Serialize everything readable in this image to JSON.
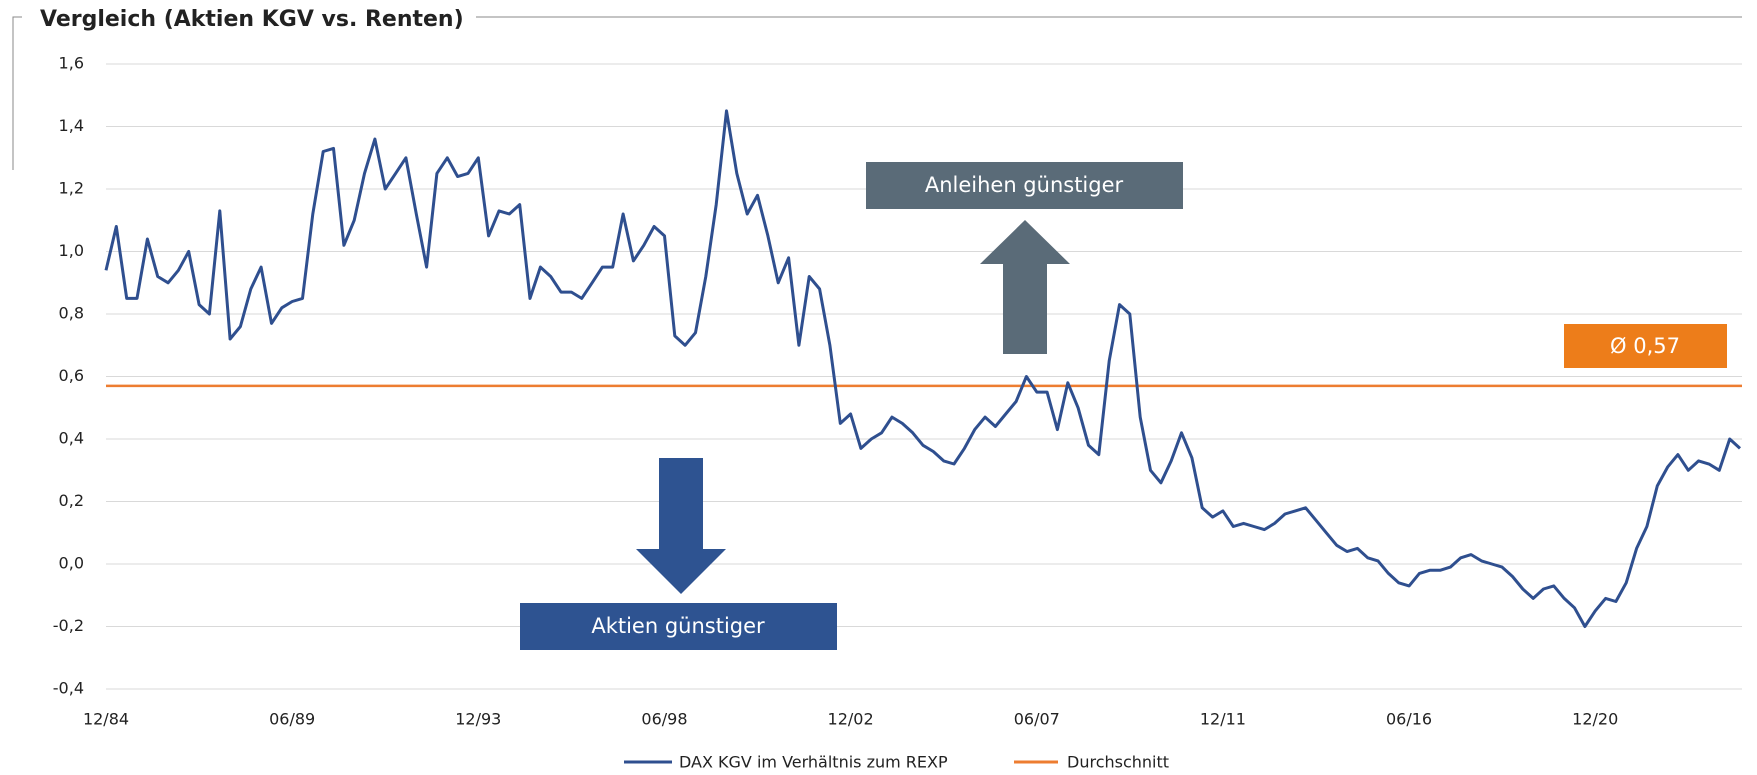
{
  "chart_data": {
    "type": "line",
    "title": "Vergleich (Aktien KGV vs. Renten)",
    "categories": [
      "12/84",
      null,
      null,
      null,
      null,
      null,
      null,
      null,
      null,
      null,
      null,
      null,
      null,
      null,
      null,
      null,
      null,
      null,
      "06/89",
      null,
      null,
      null,
      null,
      null,
      null,
      null,
      null,
      null,
      null,
      null,
      null,
      null,
      null,
      null,
      null,
      null,
      "12/93",
      null,
      null,
      null,
      null,
      null,
      null,
      null,
      null,
      null,
      null,
      null,
      null,
      null,
      null,
      null,
      null,
      null,
      "06/98",
      null,
      null,
      null,
      null,
      null,
      null,
      null,
      null,
      null,
      null,
      null,
      null,
      null,
      null,
      null,
      null,
      null,
      "12/02",
      null,
      null,
      null,
      null,
      null,
      null,
      null,
      null,
      null,
      null,
      null,
      null,
      null,
      null,
      null,
      null,
      null,
      "06/07",
      null,
      null,
      null,
      null,
      null,
      null,
      null,
      null,
      null,
      null,
      null,
      null,
      null,
      null,
      null,
      null,
      null,
      "12/11",
      null,
      null,
      null,
      null,
      null,
      null,
      null,
      null,
      null,
      null,
      null,
      null,
      null,
      null,
      null,
      null,
      null,
      "06/16",
      null,
      null,
      null,
      null,
      null,
      null,
      null,
      null,
      null,
      null,
      null,
      null,
      null,
      null,
      null,
      null,
      null,
      "12/20",
      null,
      null,
      null,
      null,
      null,
      null,
      null,
      null,
      null,
      null,
      null,
      null,
      null,
      null
    ],
    "series": [
      {
        "name": "DAX KGV im Verhältnis zum REXP",
        "color": "#2f4f8f",
        "values": [
          0.94,
          1.08,
          0.85,
          0.85,
          1.04,
          0.92,
          0.9,
          0.94,
          1.0,
          0.83,
          0.8,
          1.13,
          0.72,
          0.76,
          0.88,
          0.95,
          0.77,
          0.82,
          0.84,
          0.85,
          1.12,
          1.32,
          1.33,
          1.02,
          1.1,
          1.25,
          1.36,
          1.2,
          1.25,
          1.3,
          1.12,
          0.95,
          1.25,
          1.3,
          1.24,
          1.25,
          1.3,
          1.05,
          1.13,
          1.12,
          1.15,
          0.85,
          0.95,
          0.92,
          0.87,
          0.87,
          0.85,
          0.9,
          0.95,
          0.95,
          1.12,
          0.97,
          1.02,
          1.08,
          1.05,
          0.73,
          0.7,
          0.74,
          0.92,
          1.15,
          1.45,
          1.25,
          1.12,
          1.18,
          1.05,
          0.9,
          0.98,
          0.7,
          0.92,
          0.88,
          0.7,
          0.45,
          0.48,
          0.37,
          0.4,
          0.42,
          0.47,
          0.45,
          0.42,
          0.38,
          0.36,
          0.33,
          0.32,
          0.37,
          0.43,
          0.47,
          0.44,
          0.48,
          0.52,
          0.6,
          0.55,
          0.55,
          0.43,
          0.58,
          0.5,
          0.38,
          0.35,
          0.65,
          0.83,
          0.8,
          0.47,
          0.3,
          0.26,
          0.33,
          0.42,
          0.34,
          0.18,
          0.15,
          0.17,
          0.12,
          0.13,
          0.12,
          0.11,
          0.13,
          0.16,
          0.17,
          0.18,
          0.14,
          0.1,
          0.06,
          0.04,
          0.05,
          0.02,
          0.01,
          -0.03,
          -0.06,
          -0.07,
          -0.03,
          -0.02,
          -0.02,
          -0.01,
          0.02,
          0.03,
          0.01,
          0.0,
          -0.01,
          -0.04,
          -0.08,
          -0.11,
          -0.08,
          -0.07,
          -0.11,
          -0.14,
          -0.2,
          -0.15,
          -0.11,
          -0.12,
          -0.06,
          0.05,
          0.12,
          0.25,
          0.31,
          0.35,
          0.3,
          0.33,
          0.32,
          0.3,
          0.4,
          0.37
        ]
      }
    ],
    "average": {
      "name": "Durchschnitt",
      "value": 0.57,
      "label": "Ø 0,57",
      "color": "#ed7d31"
    },
    "annotations": [
      "Anleihen günstiger",
      "Aktien günstiger"
    ],
    "ylim": [
      -0.4,
      1.6
    ],
    "yticks": [
      {
        "value": -0.4,
        "label": "-0,4"
      },
      {
        "value": -0.2,
        "label": "-0,2"
      },
      {
        "value": 0,
        "label": "0,0"
      },
      {
        "value": 0.2,
        "label": "0,2"
      },
      {
        "value": 0.4,
        "label": "0,4"
      },
      {
        "value": 0.6,
        "label": "0,6"
      },
      {
        "value": 0.8,
        "label": "0,8"
      },
      {
        "value": 1.0,
        "label": "1,0"
      },
      {
        "value": 1.2,
        "label": "1,2"
      },
      {
        "value": 1.4,
        "label": "1,4"
      },
      {
        "value": 1.6,
        "label": "1,6"
      }
    ],
    "grid": true
  }
}
